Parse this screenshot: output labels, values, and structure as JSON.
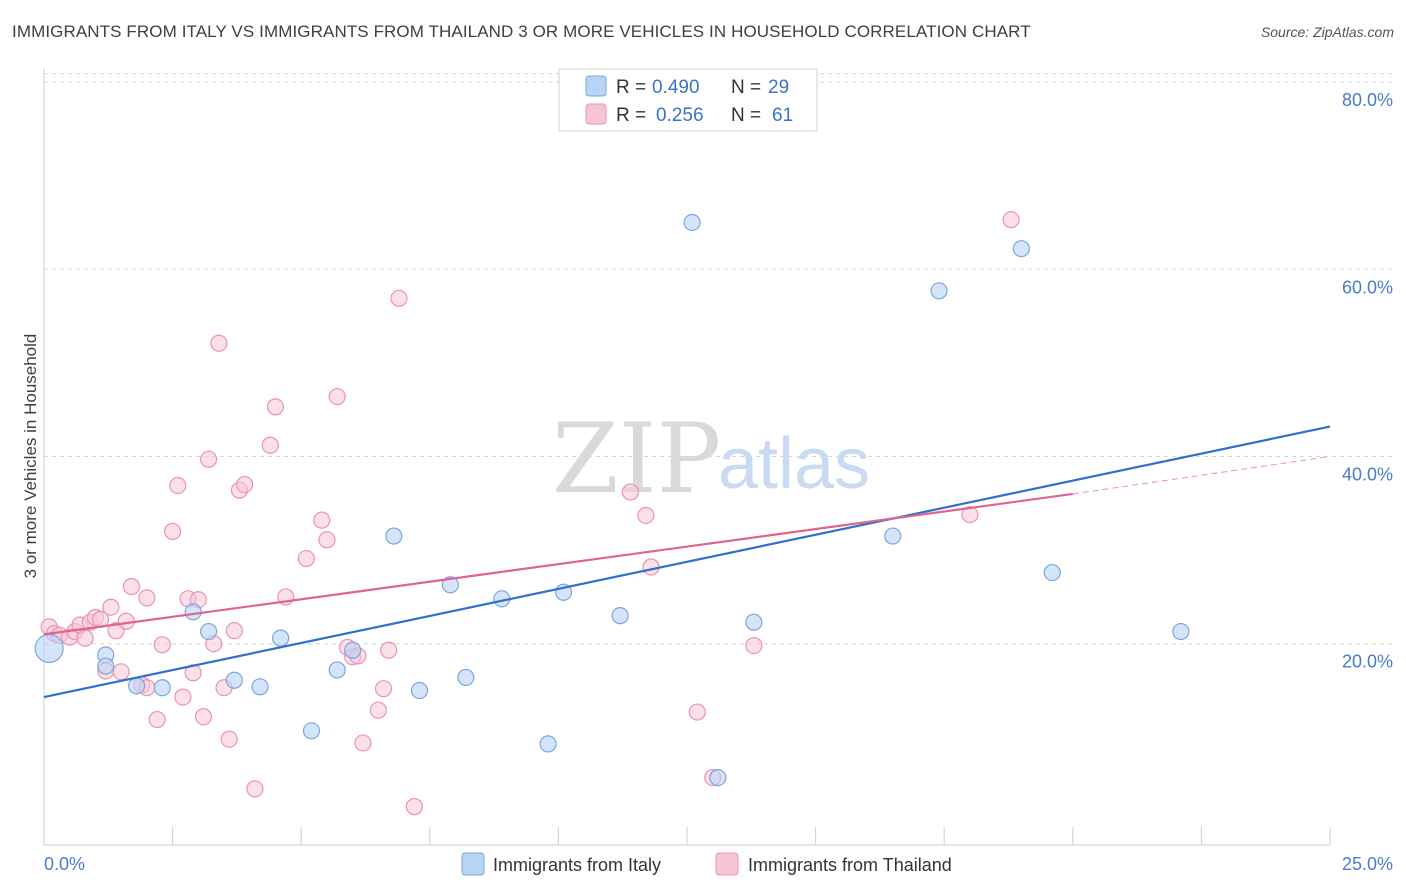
{
  "title": "IMMIGRANTS FROM ITALY VS IMMIGRANTS FROM THAILAND 3 OR MORE VEHICLES IN HOUSEHOLD CORRELATION CHART",
  "source": "Source: ZipAtlas.com",
  "watermark": {
    "zip": "ZIP",
    "atlas": "atlas"
  },
  "colors": {
    "italy_fill": "#b9d3f5",
    "italy_stroke": "#7aa6e0",
    "italy_line": "#2f6fcf",
    "thailand_fill": "#f7c6d6",
    "thailand_stroke": "#eb93b3",
    "thailand_line": "#e0648f",
    "grid": "#d5d5d5",
    "axis_tick_text": "#4a7cc9"
  },
  "legend": {
    "italy": {
      "r_label": "R =",
      "r_value": "0.490",
      "n_label": "N =",
      "n_value": "29"
    },
    "thailand": {
      "r_label": "R =",
      "r_value": "0.256",
      "n_label": "N =",
      "n_value": "61"
    }
  },
  "bottom_legend": {
    "italy": "Immigrants from Italy",
    "thailand": "Immigrants from Thailand"
  },
  "chart_data": {
    "type": "scatter",
    "title": "IMMIGRANTS FROM ITALY VS IMMIGRANTS FROM THAILAND 3 OR MORE VEHICLES IN HOUSEHOLD CORRELATION CHART",
    "xlabel": "",
    "ylabel": "3 or more Vehicles in Household",
    "xlim": [
      0,
      25
    ],
    "ylim": [
      -1.5,
      81.5
    ],
    "x_tick_labels": [
      {
        "value": 0,
        "label": "0.0%"
      },
      {
        "value": 25,
        "label": "25.0%"
      }
    ],
    "x_minor_ticks": [
      2.5,
      5,
      7.5,
      10,
      12.5,
      15,
      17.5,
      20,
      22.5,
      25
    ],
    "y_ticks": [
      {
        "value": 20,
        "label": "20.0%"
      },
      {
        "value": 40,
        "label": "40.0%"
      },
      {
        "value": 60,
        "label": "60.0%"
      },
      {
        "value": 80,
        "label": "80.0%"
      }
    ],
    "grid": true,
    "series": [
      {
        "name": "Immigrants from Italy",
        "R": 0.49,
        "N": 29,
        "trend": {
          "x0": 0,
          "y0": 14.3,
          "x1": 25,
          "y1": 43.2
        },
        "points": [
          [
            0.1,
            19.5,
            "big"
          ],
          [
            1.2,
            18.8
          ],
          [
            1.2,
            17.6
          ],
          [
            1.8,
            15.5
          ],
          [
            2.3,
            15.3
          ],
          [
            2.9,
            23.4
          ],
          [
            3.2,
            21.3
          ],
          [
            3.7,
            16.1
          ],
          [
            4.2,
            15.4
          ],
          [
            4.6,
            20.6
          ],
          [
            5.2,
            10.7
          ],
          [
            5.7,
            17.2
          ],
          [
            6.0,
            19.3
          ],
          [
            6.8,
            31.5
          ],
          [
            7.3,
            15.0
          ],
          [
            7.9,
            26.3
          ],
          [
            8.2,
            16.4
          ],
          [
            8.9,
            24.8
          ],
          [
            9.8,
            9.3
          ],
          [
            10.1,
            25.5
          ],
          [
            11.2,
            23.0
          ],
          [
            12.6,
            65.0
          ],
          [
            13.1,
            5.7
          ],
          [
            13.8,
            22.3
          ],
          [
            16.5,
            31.5
          ],
          [
            17.4,
            57.7
          ],
          [
            19.0,
            62.2
          ],
          [
            19.6,
            27.6
          ],
          [
            22.1,
            21.3
          ]
        ]
      },
      {
        "name": "Immigrants from Thailand",
        "R": 0.256,
        "N": 61,
        "trend": {
          "x0": 0,
          "y0": 21.0,
          "x1": 20.0,
          "y1": 36.0
        },
        "trend_dashed_end": {
          "x": 25,
          "y": 40.0
        },
        "points": [
          [
            0.1,
            21.8
          ],
          [
            0.2,
            21.1
          ],
          [
            0.3,
            20.9
          ],
          [
            0.5,
            20.7
          ],
          [
            0.6,
            21.3
          ],
          [
            0.7,
            22.0
          ],
          [
            0.8,
            20.6
          ],
          [
            0.9,
            22.3
          ],
          [
            1.0,
            22.8
          ],
          [
            1.1,
            22.6
          ],
          [
            1.2,
            17.1
          ],
          [
            1.3,
            23.9
          ],
          [
            1.4,
            21.4
          ],
          [
            1.5,
            17.0
          ],
          [
            1.6,
            22.4
          ],
          [
            1.7,
            26.1
          ],
          [
            1.9,
            15.6
          ],
          [
            2.0,
            15.3
          ],
          [
            2.0,
            24.9
          ],
          [
            2.2,
            11.9
          ],
          [
            2.3,
            19.9
          ],
          [
            2.5,
            32.0
          ],
          [
            2.6,
            36.9
          ],
          [
            2.7,
            14.3
          ],
          [
            2.8,
            24.8
          ],
          [
            2.9,
            16.9
          ],
          [
            3.0,
            24.7
          ],
          [
            3.1,
            12.2
          ],
          [
            3.2,
            39.7
          ],
          [
            3.3,
            20.0
          ],
          [
            3.4,
            52.1
          ],
          [
            3.5,
            15.3
          ],
          [
            3.6,
            9.8
          ],
          [
            3.7,
            21.4
          ],
          [
            3.8,
            36.4
          ],
          [
            3.9,
            37.0
          ],
          [
            4.1,
            4.5
          ],
          [
            4.4,
            41.2
          ],
          [
            4.5,
            45.3
          ],
          [
            4.7,
            25.0
          ],
          [
            5.1,
            29.1
          ],
          [
            5.4,
            33.2
          ],
          [
            5.5,
            31.1
          ],
          [
            5.7,
            46.4
          ],
          [
            5.9,
            19.6
          ],
          [
            6.0,
            18.6
          ],
          [
            6.1,
            18.7
          ],
          [
            6.2,
            9.4
          ],
          [
            6.5,
            12.9
          ],
          [
            6.6,
            15.2
          ],
          [
            6.7,
            19.3
          ],
          [
            6.9,
            56.9
          ],
          [
            7.2,
            2.6
          ],
          [
            11.4,
            36.2
          ],
          [
            11.7,
            33.7
          ],
          [
            11.8,
            28.2
          ],
          [
            12.7,
            12.7
          ],
          [
            13.0,
            5.7
          ],
          [
            13.8,
            19.8
          ],
          [
            18.0,
            33.8
          ],
          [
            18.8,
            65.3
          ]
        ]
      }
    ]
  }
}
